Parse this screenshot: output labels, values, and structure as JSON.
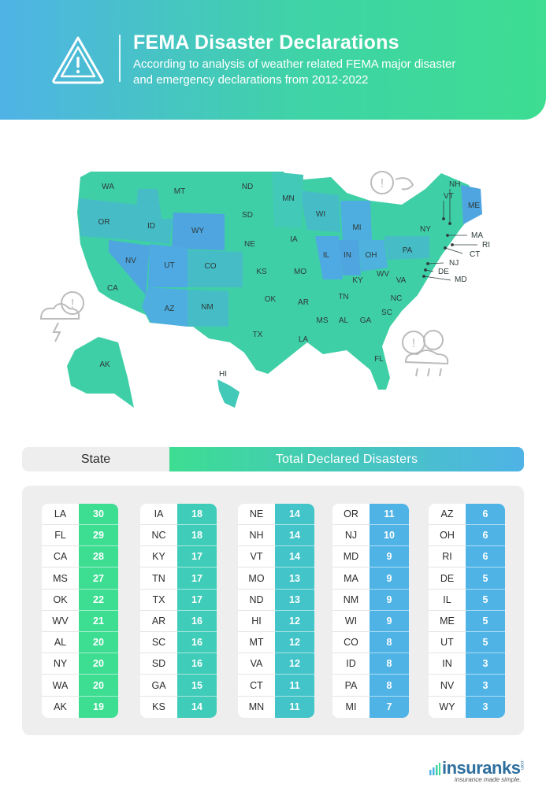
{
  "header": {
    "title": "FEMA Disaster Declarations",
    "subtitle": "According to analysis of weather related FEMA major disaster and emergency declarations from 2012-2022",
    "icon": "warning-triangle-icon"
  },
  "colors": {
    "green": "#3ddd92",
    "teal": "#3fccb8",
    "blue": "#4fb3e6",
    "header_gradient": [
      "#4fb3e6",
      "#3ddd92"
    ]
  },
  "table_header": {
    "state_label": "State",
    "total_label": "Total Declared Disasters"
  },
  "map": {
    "labels": [
      "WA",
      "OR",
      "ID",
      "MT",
      "WY",
      "ND",
      "SD",
      "NE",
      "MN",
      "WI",
      "IA",
      "IL",
      "IN",
      "MI",
      "OH",
      "PA",
      "NY",
      "NV",
      "UT",
      "CO",
      "KS",
      "MO",
      "KY",
      "WV",
      "VA",
      "CA",
      "AZ",
      "NM",
      "OK",
      "AR",
      "TN",
      "NC",
      "SC",
      "TX",
      "LA",
      "MS",
      "AL",
      "GA",
      "FL",
      "AK",
      "HI",
      "NH",
      "VT",
      "ME",
      "MA",
      "RI",
      "CT",
      "NJ",
      "DE",
      "MD"
    ]
  },
  "chart_data": {
    "type": "table",
    "title": "FEMA Disaster Declarations",
    "columns": [
      "State",
      "Total Declared Disasters"
    ],
    "rows": [
      [
        "LA",
        30
      ],
      [
        "FL",
        29
      ],
      [
        "CA",
        28
      ],
      [
        "MS",
        27
      ],
      [
        "OK",
        22
      ],
      [
        "WV",
        21
      ],
      [
        "AL",
        20
      ],
      [
        "NY",
        20
      ],
      [
        "WA",
        20
      ],
      [
        "AK",
        19
      ],
      [
        "IA",
        18
      ],
      [
        "NC",
        18
      ],
      [
        "KY",
        17
      ],
      [
        "TN",
        17
      ],
      [
        "TX",
        17
      ],
      [
        "AR",
        16
      ],
      [
        "SC",
        16
      ],
      [
        "SD",
        16
      ],
      [
        "GA",
        15
      ],
      [
        "KS",
        14
      ],
      [
        "NE",
        14
      ],
      [
        "NH",
        14
      ],
      [
        "VT",
        14
      ],
      [
        "MO",
        13
      ],
      [
        "ND",
        13
      ],
      [
        "HI",
        12
      ],
      [
        "MT",
        12
      ],
      [
        "VA",
        12
      ],
      [
        "CT",
        11
      ],
      [
        "MN",
        11
      ],
      [
        "OR",
        11
      ],
      [
        "NJ",
        10
      ],
      [
        "MD",
        9
      ],
      [
        "MA",
        9
      ],
      [
        "NM",
        9
      ],
      [
        "WI",
        9
      ],
      [
        "CO",
        8
      ],
      [
        "ID",
        8
      ],
      [
        "PA",
        8
      ],
      [
        "MI",
        7
      ],
      [
        "AZ",
        6
      ],
      [
        "OH",
        6
      ],
      [
        "RI",
        6
      ],
      [
        "DE",
        5
      ],
      [
        "IL",
        5
      ],
      [
        "ME",
        5
      ],
      [
        "UT",
        5
      ],
      [
        "IN",
        3
      ],
      [
        "NV",
        3
      ],
      [
        "WY",
        3
      ]
    ]
  },
  "logo": {
    "name": "insuranks",
    "tagline": "insurance made simple.",
    "suffix": ".com"
  }
}
